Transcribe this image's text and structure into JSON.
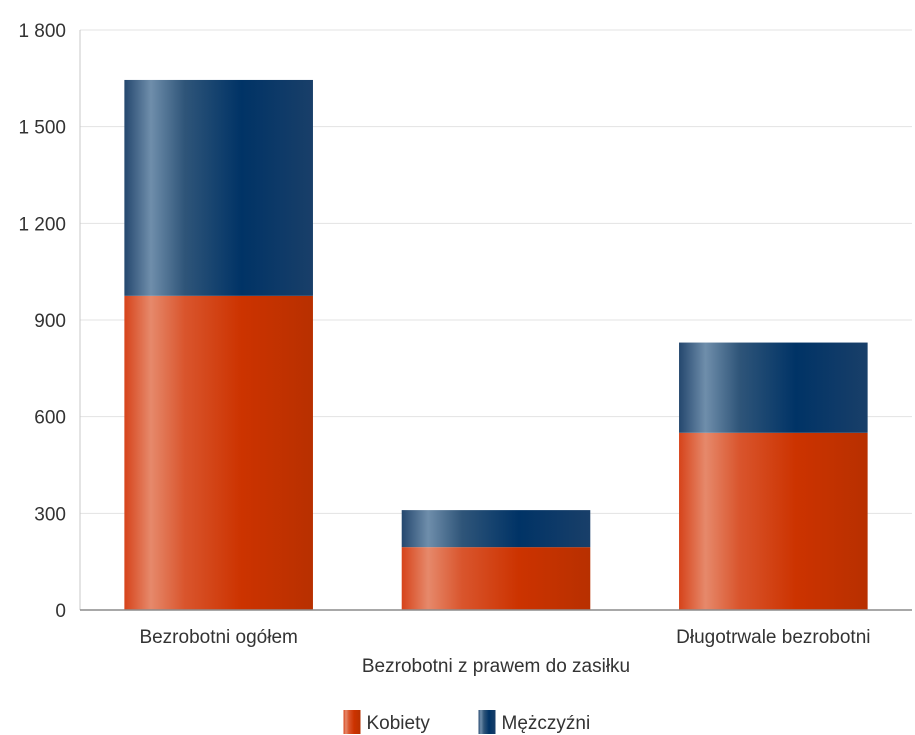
{
  "chart_data": {
    "type": "bar",
    "stacked": true,
    "categories": [
      "Bezrobotni ogółem",
      "Bezrobotni z prawem do zasiłku",
      "Długotrwale bezrobotni"
    ],
    "series": [
      {
        "name": "Kobiety",
        "values": [
          975,
          195,
          550
        ],
        "color": "#cc3300"
      },
      {
        "name": "Mężczyźni",
        "values": [
          670,
          115,
          280
        ],
        "color": "#003366"
      }
    ],
    "y_ticks": [
      "0",
      "300",
      "600",
      "900",
      "1 200",
      "1 500",
      "1 800"
    ],
    "ylim": [
      0,
      1800
    ],
    "grid": true,
    "legend": "bottom-center",
    "title": "",
    "xlabel": "",
    "ylabel": ""
  }
}
